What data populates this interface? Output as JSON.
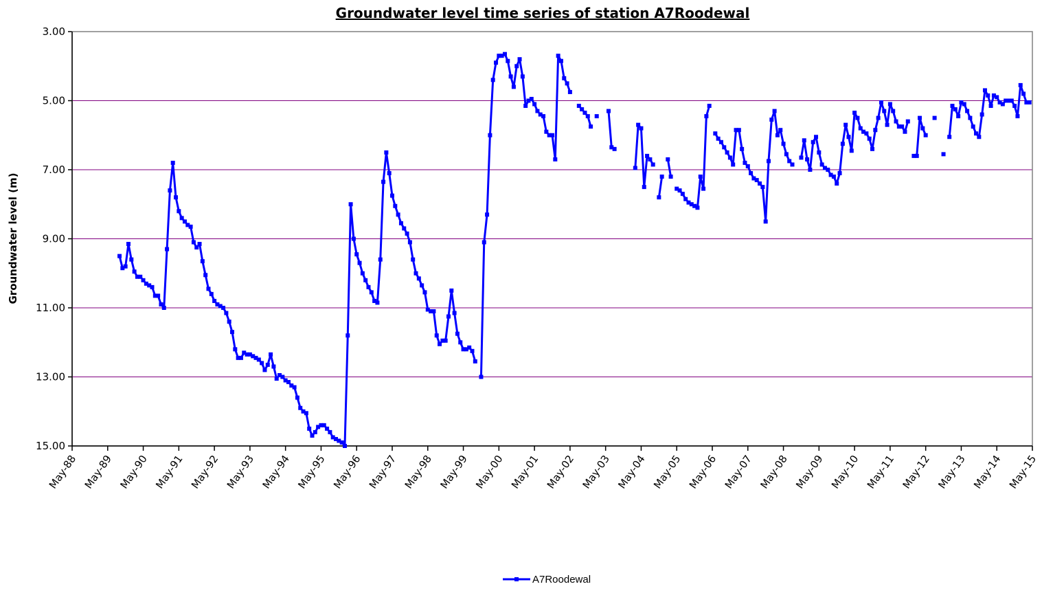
{
  "chart_data": {
    "type": "line",
    "title": "Groundwater level time series of station  A7Roodewal",
    "y_label": "Groundwater level (m)",
    "y_inverted": true,
    "grid": true,
    "legend": "bottom",
    "xlim": [
      "1988-05",
      "2015-05"
    ],
    "xticks": [
      {
        "value": "1988-05",
        "label": "May-88"
      },
      {
        "value": "1989-05",
        "label": "May-89"
      },
      {
        "value": "1990-05",
        "label": "May-90"
      },
      {
        "value": "1991-05",
        "label": "May-91"
      },
      {
        "value": "1992-05",
        "label": "May-92"
      },
      {
        "value": "1993-05",
        "label": "May-93"
      },
      {
        "value": "1994-05",
        "label": "May-94"
      },
      {
        "value": "1995-05",
        "label": "May-95"
      },
      {
        "value": "1996-05",
        "label": "May-96"
      },
      {
        "value": "1997-05",
        "label": "May-97"
      },
      {
        "value": "1998-05",
        "label": "May-98"
      },
      {
        "value": "1999-05",
        "label": "May-99"
      },
      {
        "value": "2000-05",
        "label": "May-00"
      },
      {
        "value": "2001-05",
        "label": "May-01"
      },
      {
        "value": "2002-05",
        "label": "May-02"
      },
      {
        "value": "2003-05",
        "label": "May-03"
      },
      {
        "value": "2004-05",
        "label": "May-04"
      },
      {
        "value": "2005-05",
        "label": "May-05"
      },
      {
        "value": "2006-05",
        "label": "May-06"
      },
      {
        "value": "2007-05",
        "label": "May-07"
      },
      {
        "value": "2008-05",
        "label": "May-08"
      },
      {
        "value": "2009-05",
        "label": "May-09"
      },
      {
        "value": "2010-05",
        "label": "May-10"
      },
      {
        "value": "2011-05",
        "label": "May-11"
      },
      {
        "value": "2012-05",
        "label": "May-12"
      },
      {
        "value": "2013-05",
        "label": "May-13"
      },
      {
        "value": "2014-05",
        "label": "May-14"
      },
      {
        "value": "2015-05",
        "label": "May-15"
      }
    ],
    "ylim": [
      3,
      15
    ],
    "yticks": [
      {
        "value": 3,
        "label": "3.00"
      },
      {
        "value": 5,
        "label": "5.00"
      },
      {
        "value": 7,
        "label": "7.00"
      },
      {
        "value": 9,
        "label": "9.00"
      },
      {
        "value": 11,
        "label": "11.00"
      },
      {
        "value": 13,
        "label": "13.00"
      },
      {
        "value": 15,
        "label": "15.00"
      }
    ],
    "x": [
      "1989-09",
      "1989-10",
      "1989-11",
      "1989-12",
      "1990-01",
      "1990-02",
      "1990-03",
      "1990-04",
      "1990-05",
      "1990-06",
      "1990-07",
      "1990-08",
      "1990-09",
      "1990-10",
      "1990-11",
      "1990-12",
      "1991-01",
      "1991-02",
      "1991-03",
      "1991-04",
      "1991-05",
      "1991-06",
      "1991-07",
      "1991-08",
      "1991-09",
      "1991-10",
      "1991-11",
      "1991-12",
      "1992-01",
      "1992-02",
      "1992-03",
      "1992-04",
      "1992-05",
      "1992-06",
      "1992-07",
      "1992-08",
      "1992-09",
      "1992-10",
      "1992-11",
      "1992-12",
      "1993-01",
      "1993-02",
      "1993-03",
      "1993-04",
      "1993-05",
      "1993-06",
      "1993-07",
      "1993-08",
      "1993-09",
      "1993-10",
      "1993-11",
      "1993-12",
      "1994-01",
      "1994-02",
      "1994-03",
      "1994-04",
      "1994-05",
      "1994-06",
      "1994-07",
      "1994-08",
      "1994-09",
      "1994-10",
      "1994-11",
      "1994-12",
      "1995-01",
      "1995-02",
      "1995-03",
      "1995-04",
      "1995-05",
      "1995-06",
      "1995-07",
      "1995-08",
      "1995-09",
      "1995-10",
      "1995-11",
      "1995-12",
      "1996-01",
      "1996-02",
      "1996-03",
      "1996-04",
      "1996-05",
      "1996-06",
      "1996-07",
      "1996-08",
      "1996-09",
      "1996-10",
      "1996-11",
      "1996-12",
      "1997-01",
      "1997-02",
      "1997-03",
      "1997-04",
      "1997-05",
      "1997-06",
      "1997-07",
      "1997-08",
      "1997-09",
      "1997-10",
      "1997-11",
      "1997-12",
      "1998-01",
      "1998-02",
      "1998-03",
      "1998-04",
      "1998-05",
      "1998-06",
      "1998-07",
      "1998-08",
      "1998-09",
      "1998-10",
      "1998-11",
      "1998-12",
      "1999-01",
      "1999-02",
      "1999-03",
      "1999-04",
      "1999-05",
      "1999-06",
      "1999-07",
      "1999-08",
      "1999-09",
      "1999-10",
      "1999-11",
      "1999-12",
      "2000-01",
      "2000-02",
      "2000-03",
      "2000-04",
      "2000-05",
      "2000-06",
      "2000-07",
      "2000-08",
      "2000-09",
      "2000-10",
      "2000-11",
      "2000-12",
      "2001-01",
      "2001-02",
      "2001-03",
      "2001-04",
      "2001-05",
      "2001-06",
      "2001-07",
      "2001-08",
      "2001-09",
      "2001-10",
      "2001-11",
      "2001-12",
      "2002-01",
      "2002-02",
      "2002-03",
      "2002-04",
      "2002-05",
      "2002-06",
      "2002-07",
      "2002-08",
      "2002-09",
      "2002-10",
      "2002-11",
      "2002-12",
      "2003-01",
      "2003-02",
      "2003-03",
      "2003-04",
      "2003-05",
      "2003-06",
      "2003-07",
      "2003-08",
      "2003-09",
      "2003-10",
      "2003-11",
      "2003-12",
      "2004-01",
      "2004-02",
      "2004-03",
      "2004-04",
      "2004-05",
      "2004-06",
      "2004-07",
      "2004-08",
      "2004-09",
      "2004-10",
      "2004-11",
      "2004-12",
      "2005-01",
      "2005-02",
      "2005-03",
      "2005-04",
      "2005-05",
      "2005-06",
      "2005-07",
      "2005-08",
      "2005-09",
      "2005-10",
      "2005-11",
      "2005-12",
      "2006-01",
      "2006-02",
      "2006-03",
      "2006-04",
      "2006-05",
      "2006-06",
      "2006-07",
      "2006-08",
      "2006-09",
      "2006-10",
      "2006-11",
      "2006-12",
      "2007-01",
      "2007-02",
      "2007-03",
      "2007-04",
      "2007-05",
      "2007-06",
      "2007-07",
      "2007-08",
      "2007-09",
      "2007-10",
      "2007-11",
      "2007-12",
      "2008-01",
      "2008-02",
      "2008-03",
      "2008-04",
      "2008-05",
      "2008-06",
      "2008-07",
      "2008-08",
      "2008-09",
      "2008-10",
      "2008-11",
      "2008-12",
      "2009-01",
      "2009-02",
      "2009-03",
      "2009-04",
      "2009-05",
      "2009-06",
      "2009-07",
      "2009-08",
      "2009-09",
      "2009-10",
      "2009-11",
      "2009-12",
      "2010-01",
      "2010-02",
      "2010-03",
      "2010-04",
      "2010-05",
      "2010-06",
      "2010-07",
      "2010-08",
      "2010-09",
      "2010-10",
      "2010-11",
      "2010-12",
      "2011-01",
      "2011-02",
      "2011-03",
      "2011-04",
      "2011-05",
      "2011-06",
      "2011-07",
      "2011-08",
      "2011-09",
      "2011-10",
      "2011-11",
      "2011-12",
      "2012-01",
      "2012-02",
      "2012-03",
      "2012-04",
      "2012-05",
      "2012-06",
      "2012-07",
      "2012-08",
      "2012-09",
      "2012-10",
      "2012-11",
      "2012-12",
      "2013-01",
      "2013-02",
      "2013-03",
      "2013-04",
      "2013-05",
      "2013-06",
      "2013-07",
      "2013-08",
      "2013-09",
      "2013-10",
      "2013-11",
      "2013-12",
      "2014-01",
      "2014-02",
      "2014-03",
      "2014-04",
      "2014-05",
      "2014-06",
      "2014-07",
      "2014-08",
      "2014-09",
      "2014-10",
      "2014-11",
      "2014-12",
      "2015-01",
      "2015-02",
      "2015-03",
      "2015-04"
    ],
    "series": [
      {
        "name": "A7Roodewal",
        "color": "#0000ff",
        "values": [
          9.5,
          9.85,
          9.8,
          9.15,
          9.6,
          9.95,
          10.1,
          10.1,
          10.2,
          10.3,
          10.35,
          10.4,
          10.65,
          10.65,
          10.9,
          11.0,
          9.3,
          7.6,
          6.8,
          7.8,
          8.2,
          8.4,
          8.5,
          8.6,
          8.65,
          9.1,
          9.25,
          9.15,
          9.65,
          10.05,
          10.45,
          10.6,
          10.8,
          10.9,
          10.95,
          11.0,
          11.15,
          11.4,
          11.7,
          12.2,
          12.45,
          12.45,
          12.3,
          12.35,
          12.35,
          12.4,
          12.45,
          12.5,
          12.6,
          12.8,
          12.65,
          12.35,
          12.7,
          13.05,
          12.95,
          13.0,
          13.1,
          13.15,
          13.25,
          13.3,
          13.6,
          13.9,
          14.0,
          14.05,
          14.5,
          14.7,
          14.6,
          14.45,
          14.4,
          14.4,
          14.5,
          14.6,
          14.75,
          14.8,
          14.85,
          14.9,
          15.0,
          11.8,
          8.0,
          9.0,
          9.45,
          9.7,
          10.0,
          10.2,
          10.4,
          10.55,
          10.8,
          10.85,
          9.6,
          7.35,
          6.5,
          7.1,
          7.75,
          8.05,
          8.3,
          8.55,
          8.7,
          8.85,
          9.1,
          9.6,
          10.0,
          10.15,
          10.35,
          10.55,
          11.05,
          11.1,
          11.1,
          11.8,
          12.05,
          11.95,
          11.95,
          11.25,
          10.5,
          11.15,
          11.75,
          12.0,
          12.2,
          12.2,
          12.15,
          12.25,
          12.55,
          null,
          13.0,
          9.1,
          8.3,
          6.0,
          4.4,
          3.9,
          3.7,
          3.7,
          3.65,
          3.85,
          4.3,
          4.6,
          4.0,
          3.8,
          4.3,
          5.15,
          5.0,
          4.95,
          5.1,
          5.3,
          5.4,
          5.45,
          5.9,
          6.0,
          6.0,
          6.7,
          3.7,
          3.85,
          4.35,
          4.5,
          4.75,
          null,
          null,
          5.15,
          5.25,
          5.35,
          5.45,
          5.75,
          null,
          5.45,
          null,
          null,
          null,
          5.3,
          6.35,
          6.4,
          null,
          null,
          null,
          null,
          null,
          null,
          6.95,
          5.7,
          5.8,
          7.5,
          6.6,
          6.7,
          6.85,
          null,
          7.8,
          7.2,
          null,
          6.7,
          7.2,
          null,
          7.55,
          7.6,
          7.7,
          7.85,
          7.95,
          8.0,
          8.05,
          8.1,
          7.2,
          7.55,
          5.45,
          5.15,
          null,
          5.95,
          6.1,
          6.2,
          6.35,
          6.5,
          6.65,
          6.85,
          5.85,
          5.85,
          6.4,
          6.8,
          6.9,
          7.1,
          7.25,
          7.3,
          7.4,
          7.5,
          8.5,
          6.75,
          5.55,
          5.3,
          6.0,
          5.85,
          6.25,
          6.55,
          6.75,
          6.85,
          null,
          null,
          6.65,
          6.15,
          6.7,
          7.0,
          6.2,
          6.05,
          6.5,
          6.85,
          6.95,
          7.0,
          7.15,
          7.2,
          7.4,
          7.1,
          6.25,
          5.7,
          6.05,
          6.45,
          5.35,
          5.5,
          5.8,
          5.9,
          5.95,
          6.1,
          6.4,
          5.85,
          5.5,
          5.05,
          5.3,
          5.7,
          5.1,
          5.3,
          5.6,
          5.75,
          5.75,
          5.9,
          5.6,
          null,
          6.6,
          6.6,
          5.5,
          5.8,
          6.0,
          null,
          null,
          5.5,
          null,
          null,
          6.55,
          null,
          6.05,
          5.15,
          5.25,
          5.45,
          5.05,
          5.1,
          5.3,
          5.5,
          5.75,
          5.95,
          6.05,
          5.4,
          4.7,
          4.85,
          5.15,
          4.85,
          4.9,
          5.05,
          5.1,
          5.0,
          5.0,
          5.0,
          5.15,
          5.45,
          4.55,
          4.8,
          5.05,
          5.05
        ]
      }
    ]
  }
}
